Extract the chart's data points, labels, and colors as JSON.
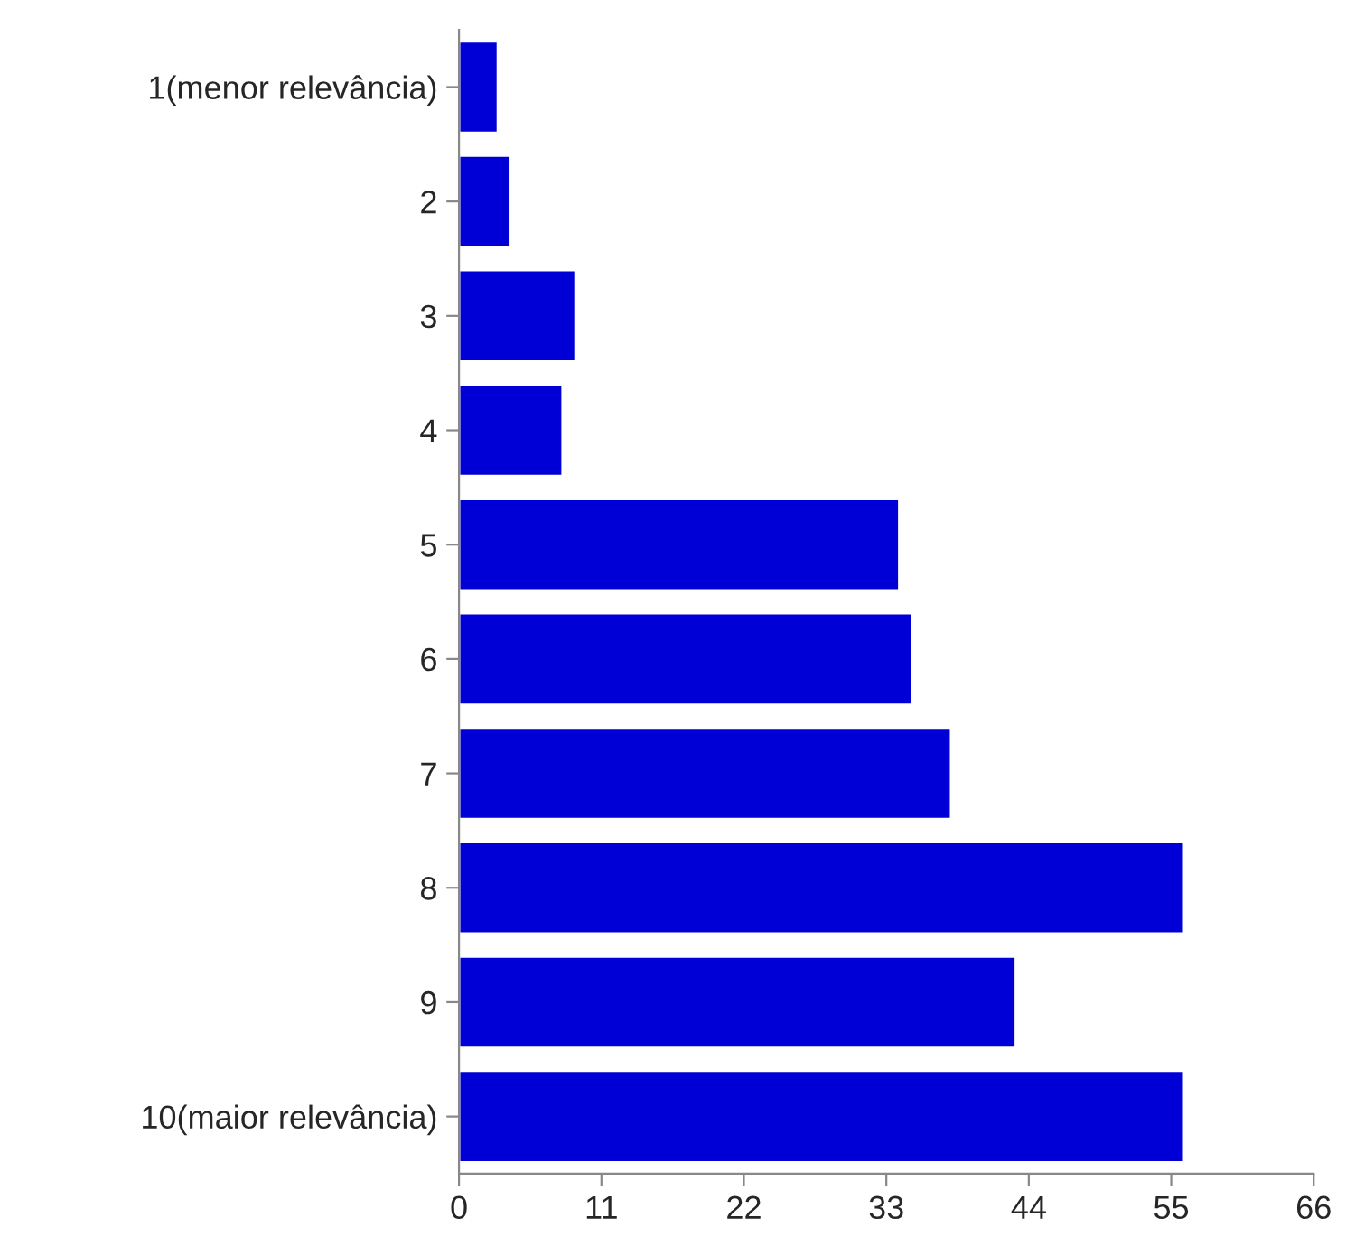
{
  "chart_data": {
    "type": "bar",
    "orientation": "horizontal",
    "categories": [
      "1(menor relevância)",
      "2",
      "3",
      "4",
      "5",
      "6",
      "7",
      "8",
      "9",
      "10(maior relevância)"
    ],
    "values": [
      3,
      4,
      9,
      8,
      34,
      35,
      38,
      56,
      43,
      56
    ],
    "color": "#0000d6",
    "xlim": [
      0,
      66
    ],
    "xticks": [
      0,
      11,
      22,
      33,
      44,
      55,
      66
    ],
    "grid": false,
    "legend": false
  }
}
